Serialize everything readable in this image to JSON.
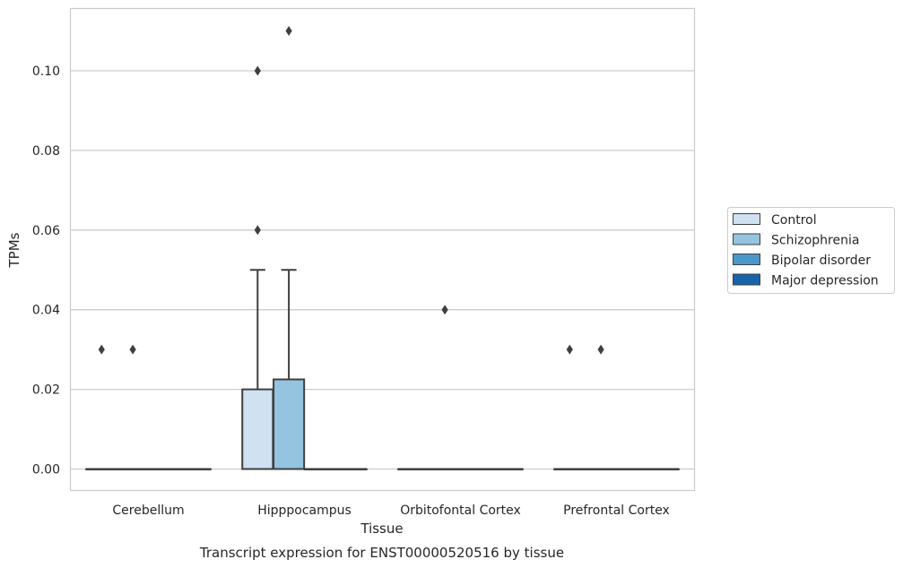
{
  "chart_data": {
    "type": "box",
    "title": "",
    "caption": "Transcript expression for ENST00000520516 by tissue",
    "xlabel": "Tissue",
    "ylabel": "TPMs",
    "ylim": [
      -0.0055,
      0.1165
    ],
    "yticks": [
      0.0,
      0.02,
      0.04,
      0.06,
      0.08,
      0.1
    ],
    "ytick_labels": [
      "0.00",
      "0.02",
      "0.04",
      "0.06",
      "0.08",
      "0.10"
    ],
    "grid": "horizontal",
    "legend_position": "right",
    "categories": [
      "Cerebellum",
      "Hipppocampus",
      "Orbitofontal Cortex",
      "Prefrontal Cortex"
    ],
    "series": [
      {
        "name": "Control",
        "color": "#d0e1f2",
        "boxes": [
          {
            "q1": 0,
            "median": 0,
            "q3": 0,
            "whisker_low": 0,
            "whisker_high": 0,
            "outliers": [
              0.03
            ]
          },
          {
            "q1": 0,
            "median": 0,
            "q3": 0.02,
            "whisker_low": 0,
            "whisker_high": 0.05,
            "outliers": [
              0.06,
              0.1
            ]
          },
          {
            "q1": 0,
            "median": 0,
            "q3": 0,
            "whisker_low": 0,
            "whisker_high": 0,
            "outliers": []
          },
          {
            "q1": 0,
            "median": 0,
            "q3": 0,
            "whisker_low": 0,
            "whisker_high": 0,
            "outliers": [
              0.03
            ]
          }
        ]
      },
      {
        "name": "Schizophrenia",
        "color": "#94c4df",
        "boxes": [
          {
            "q1": 0,
            "median": 0,
            "q3": 0,
            "whisker_low": 0,
            "whisker_high": 0,
            "outliers": [
              0.03
            ]
          },
          {
            "q1": 0,
            "median": 0,
            "q3": 0.0225,
            "whisker_low": 0,
            "whisker_high": 0.05,
            "outliers": [
              0.11
            ]
          },
          {
            "q1": 0,
            "median": 0,
            "q3": 0,
            "whisker_low": 0,
            "whisker_high": 0,
            "outliers": [
              0.04
            ]
          },
          {
            "q1": 0,
            "median": 0,
            "q3": 0,
            "whisker_low": 0,
            "whisker_high": 0,
            "outliers": [
              0.03
            ]
          }
        ]
      },
      {
        "name": "Bipolar disorder",
        "color": "#4a98c9",
        "boxes": [
          {
            "q1": 0,
            "median": 0,
            "q3": 0,
            "whisker_low": 0,
            "whisker_high": 0,
            "outliers": []
          },
          {
            "q1": 0,
            "median": 0,
            "q3": 0,
            "whisker_low": 0,
            "whisker_high": 0,
            "outliers": []
          },
          {
            "q1": 0,
            "median": 0,
            "q3": 0,
            "whisker_low": 0,
            "whisker_high": 0,
            "outliers": []
          },
          {
            "q1": 0,
            "median": 0,
            "q3": 0,
            "whisker_low": 0,
            "whisker_high": 0,
            "outliers": []
          }
        ]
      },
      {
        "name": "Major depression",
        "color": "#1764ab",
        "boxes": [
          {
            "q1": 0,
            "median": 0,
            "q3": 0,
            "whisker_low": 0,
            "whisker_high": 0,
            "outliers": []
          },
          {
            "q1": 0,
            "median": 0,
            "q3": 0,
            "whisker_low": 0,
            "whisker_high": 0,
            "outliers": []
          },
          {
            "q1": 0,
            "median": 0,
            "q3": 0,
            "whisker_low": 0,
            "whisker_high": 0,
            "outliers": []
          },
          {
            "q1": 0,
            "median": 0,
            "q3": 0,
            "whisker_low": 0,
            "whisker_high": 0,
            "outliers": []
          }
        ]
      }
    ]
  }
}
